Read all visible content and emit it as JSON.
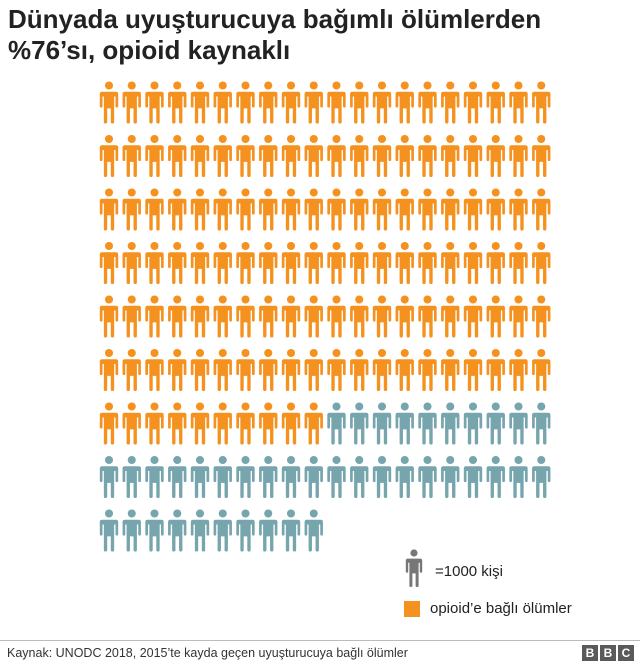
{
  "title": "Dünyada uyuşturucuya bağımlı ölümlerden %76’sı, opioid kaynaklı",
  "chart_data": {
    "type": "waffle",
    "unit_value": 1000,
    "total": 170,
    "opioid": 130,
    "other": 40,
    "items_per_row": 20,
    "colors": {
      "opioid": "#f5911e",
      "other": "#76a5ad",
      "legend_person": "#777777"
    }
  },
  "legend": {
    "unit_label": "=1000 kişi",
    "category_label": "opioid’e bağlı ölümler"
  },
  "source": "Kaynak: UNODC 2018, 2015’te kayda geçen uyuşturucuya bağlı ölümler",
  "logo": {
    "letters": [
      "B",
      "B",
      "C"
    ]
  },
  "icons": {
    "person": "person-icon"
  }
}
